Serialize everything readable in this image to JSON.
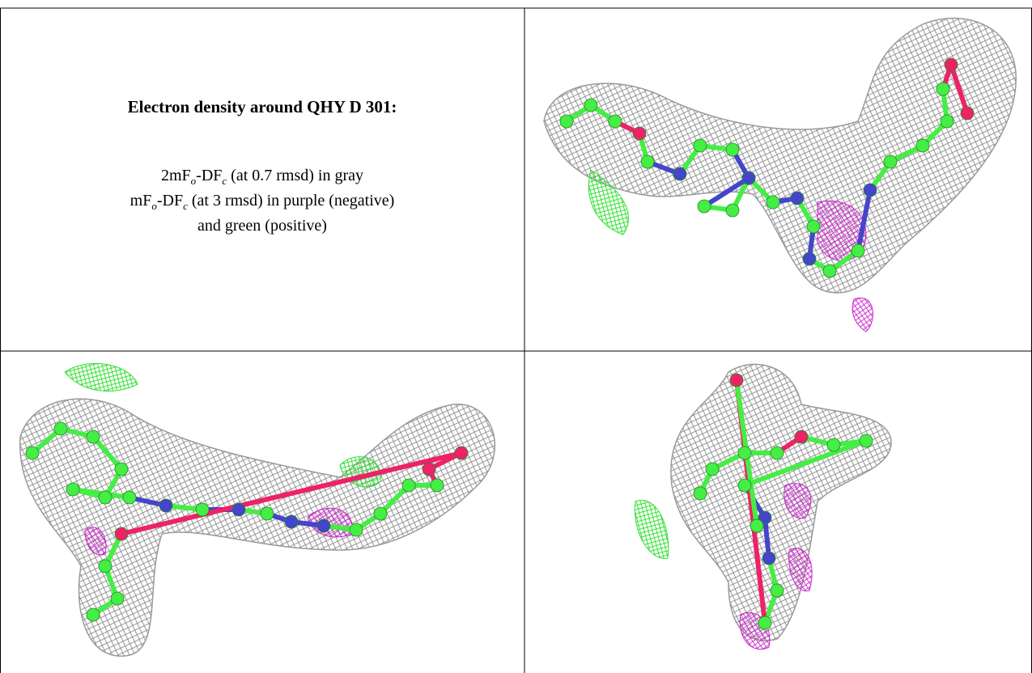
{
  "caption": {
    "title": "Electron density around QHY D 301:",
    "lines": [
      [
        "2mF",
        "o",
        "-DF",
        "c",
        " (at 0.7 rmsd) in gray"
      ],
      [
        "mF",
        "o",
        "-DF",
        "c",
        " (at 3 rmsd) in purple (negative)"
      ],
      [
        "and green (positive)"
      ]
    ]
  }
}
